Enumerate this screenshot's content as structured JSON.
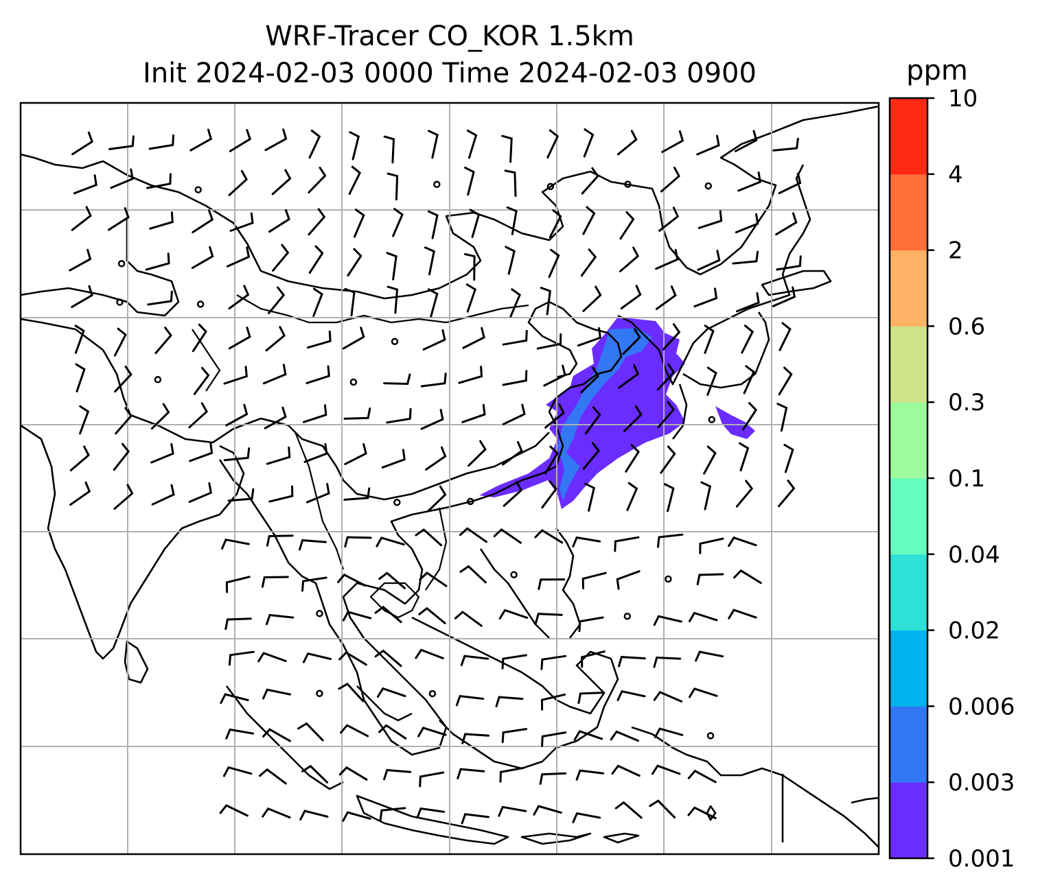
{
  "title_line1": "WRF-Tracer CO_KOR 1.5km",
  "title_line2": "Init 2024-02-03 0000 Time 2024-02-03 0900",
  "colorbar": {
    "unit": "ppm",
    "levels": [
      "0.001",
      "0.003",
      "0.006",
      "0.02",
      "0.04",
      "0.1",
      "0.3",
      "0.6",
      "2",
      "4",
      "10"
    ],
    "colors": [
      "#6a2cff",
      "#3477f5",
      "#00b2ee",
      "#2ee0d6",
      "#66fbbf",
      "#9cfc9c",
      "#cfe28a",
      "#ffb366",
      "#ff7038",
      "#ff2a14"
    ]
  },
  "map": {
    "grid": "on",
    "tracer_plume_color": "#6a2cff",
    "tracer_core_color": "#3477f5",
    "coastline_color": "#000000",
    "wind_barb_color": "#000000"
  }
}
